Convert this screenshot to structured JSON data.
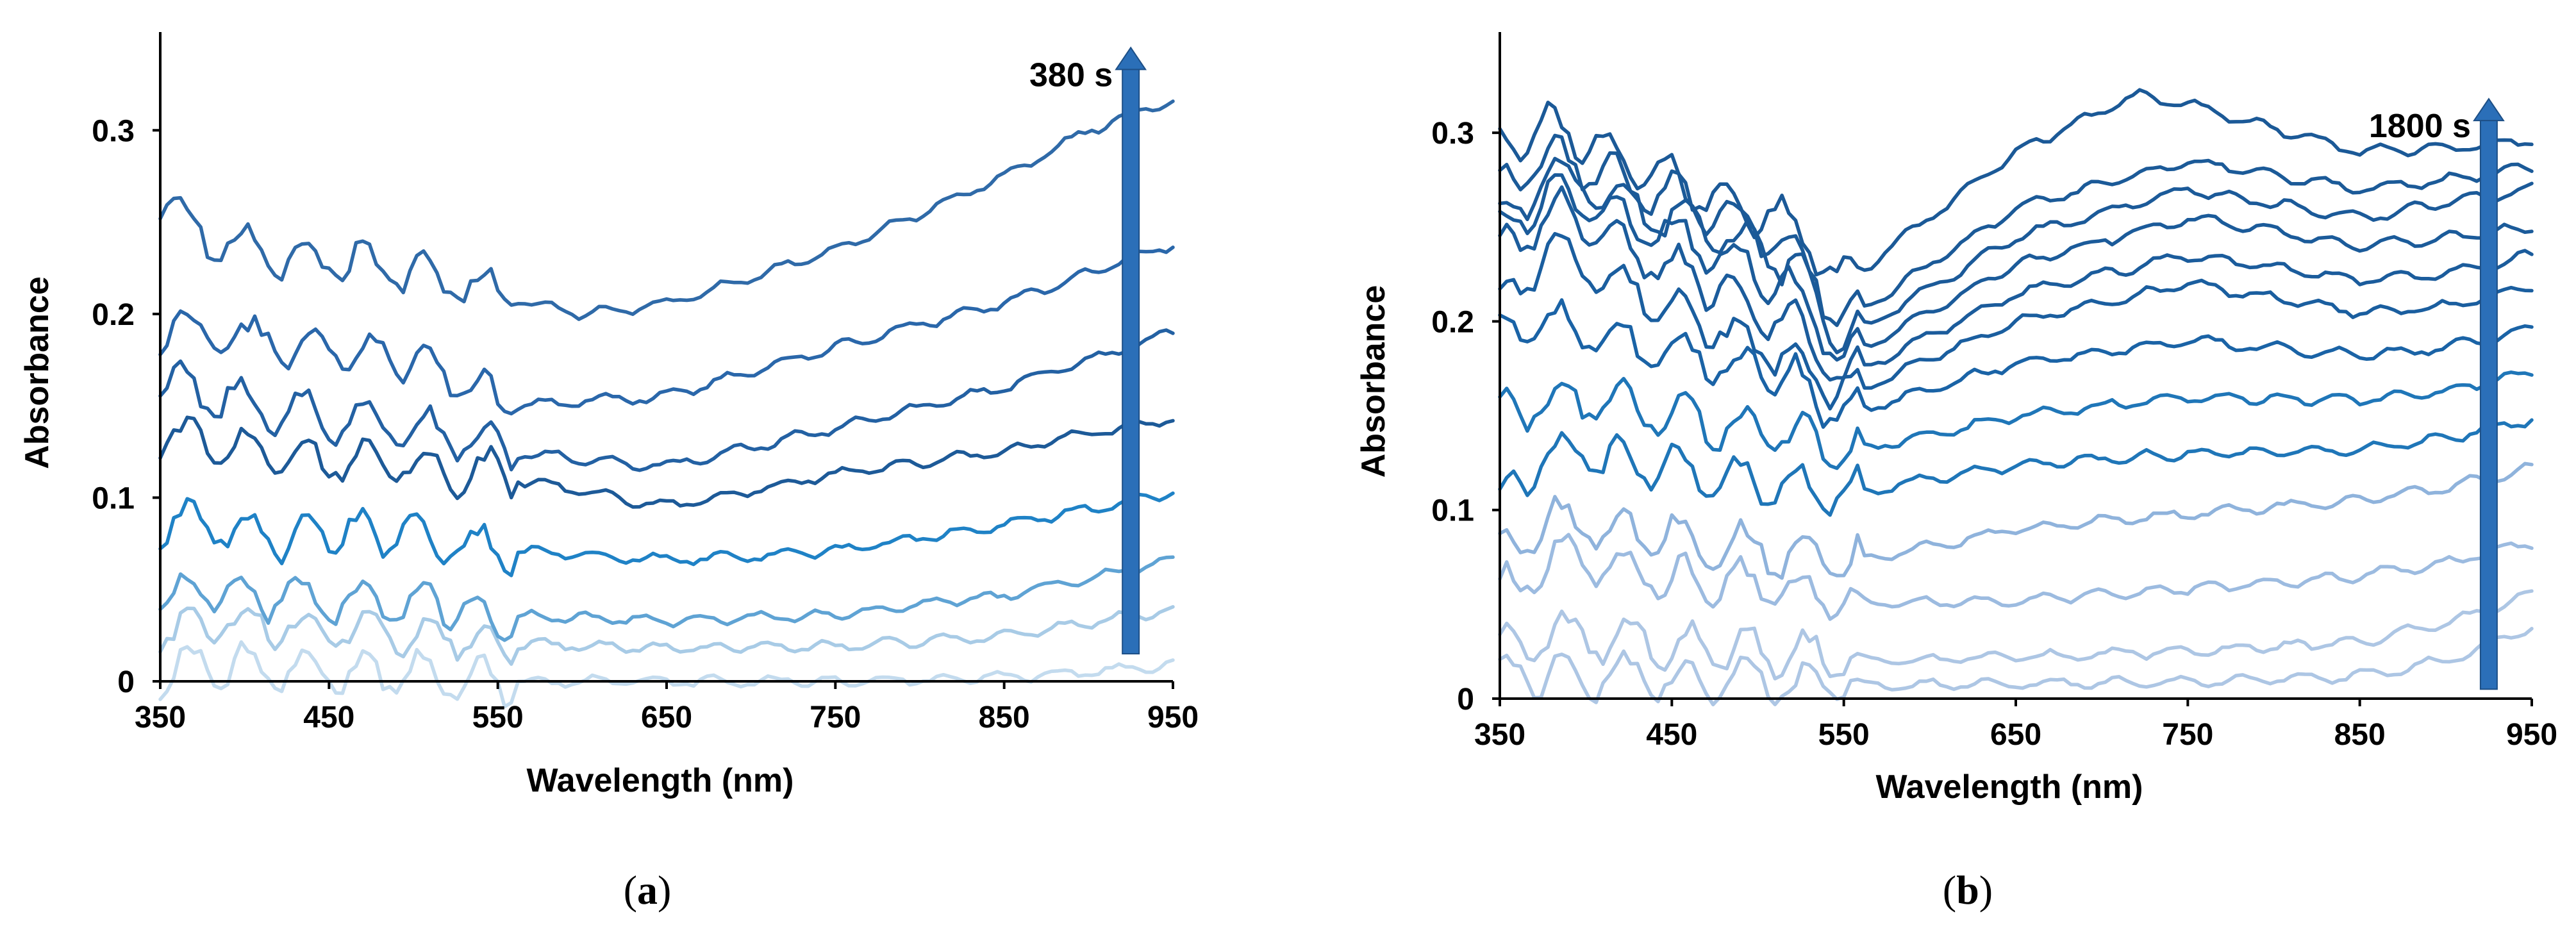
{
  "panels": [
    {
      "label_open": "(",
      "label_letter": "a",
      "label_close": ")"
    },
    {
      "label_open": "(",
      "label_letter": "b",
      "label_close": ")"
    }
  ],
  "chart_data": [
    {
      "type": "line",
      "xlabel": "Wavelength (nm)",
      "ylabel": "Absorbance",
      "xlim": [
        350,
        950
      ],
      "ylim": [
        0,
        0.35
      ],
      "xticks": [
        350,
        450,
        550,
        650,
        750,
        850,
        950
      ],
      "yticks": [
        0,
        0.1,
        0.2,
        0.3
      ],
      "ytick_labels": [
        "0",
        "0.1",
        "0.2",
        "0.3"
      ],
      "grid": false,
      "annotation": {
        "text": "380 s",
        "arrow_x": 925,
        "arrow_y_from": 0.015,
        "arrow_y_to": 0.345,
        "arrow_color": "#2b6fb8"
      },
      "series": [
        {
          "color": "#c3dbee",
          "points": [
            [
              350,
              0.005
            ],
            [
              380,
              0.01
            ],
            [
              420,
              0.006
            ],
            [
              470,
              0.004
            ],
            [
              520,
              0.003
            ],
            [
              550,
              0.0
            ],
            [
              650,
              0.0
            ],
            [
              750,
              0.0
            ],
            [
              850,
              0.002
            ],
            [
              900,
              0.005
            ],
            [
              950,
              0.009
            ]
          ]
        },
        {
          "color": "#a8cbe6",
          "points": [
            [
              350,
              0.028
            ],
            [
              380,
              0.033
            ],
            [
              420,
              0.03
            ],
            [
              470,
              0.026
            ],
            [
              520,
              0.024
            ],
            [
              550,
              0.021
            ],
            [
              650,
              0.018
            ],
            [
              750,
              0.019
            ],
            [
              850,
              0.025
            ],
            [
              900,
              0.032
            ],
            [
              950,
              0.039
            ]
          ]
        },
        {
          "color": "#5fa3d4",
          "points": [
            [
              350,
              0.048
            ],
            [
              380,
              0.05
            ],
            [
              420,
              0.045
            ],
            [
              470,
              0.042
            ],
            [
              520,
              0.04
            ],
            [
              550,
              0.036
            ],
            [
              650,
              0.033
            ],
            [
              750,
              0.036
            ],
            [
              850,
              0.047
            ],
            [
              900,
              0.056
            ],
            [
              950,
              0.066
            ]
          ]
        },
        {
          "color": "#1f82c6",
          "points": [
            [
              350,
              0.087
            ],
            [
              380,
              0.085
            ],
            [
              420,
              0.078
            ],
            [
              470,
              0.082
            ],
            [
              520,
              0.075
            ],
            [
              550,
              0.072
            ],
            [
              650,
              0.066
            ],
            [
              750,
              0.071
            ],
            [
              850,
              0.085
            ],
            [
              900,
              0.094
            ],
            [
              950,
              0.103
            ]
          ]
        },
        {
          "color": "#1d5a98",
          "points": [
            [
              350,
              0.133
            ],
            [
              380,
              0.13
            ],
            [
              420,
              0.125
            ],
            [
              470,
              0.12
            ],
            [
              520,
              0.115
            ],
            [
              550,
              0.112
            ],
            [
              650,
              0.095
            ],
            [
              750,
              0.113
            ],
            [
              850,
              0.125
            ],
            [
              900,
              0.135
            ],
            [
              950,
              0.143
            ]
          ]
        },
        {
          "color": "#2361a3",
          "points": [
            [
              350,
              0.163
            ],
            [
              380,
              0.155
            ],
            [
              420,
              0.148
            ],
            [
              470,
              0.14
            ],
            [
              520,
              0.135
            ],
            [
              550,
              0.125
            ],
            [
              650,
              0.117
            ],
            [
              750,
              0.138
            ],
            [
              850,
              0.16
            ],
            [
              900,
              0.175
            ],
            [
              950,
              0.19
            ]
          ]
        },
        {
          "color": "#2a67aa",
          "points": [
            [
              350,
              0.192
            ],
            [
              380,
              0.19
            ],
            [
              420,
              0.182
            ],
            [
              470,
              0.178
            ],
            [
              520,
              0.17
            ],
            [
              550,
              0.15
            ],
            [
              650,
              0.155
            ],
            [
              750,
              0.182
            ],
            [
              850,
              0.206
            ],
            [
              900,
              0.222
            ],
            [
              950,
              0.238
            ]
          ]
        },
        {
          "color": "#2f6aa8",
          "points": [
            [
              350,
              0.262
            ],
            [
              380,
              0.24
            ],
            [
              420,
              0.232
            ],
            [
              470,
              0.228
            ],
            [
              520,
              0.22
            ],
            [
              550,
              0.21
            ],
            [
              600,
              0.2
            ],
            [
              650,
              0.205
            ],
            [
              750,
              0.235
            ],
            [
              850,
              0.275
            ],
            [
              900,
              0.3
            ],
            [
              950,
              0.317
            ]
          ]
        }
      ]
    },
    {
      "type": "line",
      "xlabel": "Wavelength (nm)",
      "ylabel": "Absorbance",
      "xlim": [
        350,
        950
      ],
      "ylim": [
        0,
        0.35
      ],
      "xticks": [
        350,
        450,
        550,
        650,
        750,
        850,
        950
      ],
      "yticks": [
        0,
        0.1,
        0.2,
        0.3
      ],
      "ytick_labels": [
        "0",
        "0.1",
        "0.2",
        "0.3"
      ],
      "grid": false,
      "annotation": {
        "text": "1800 s",
        "arrow_x": 925,
        "arrow_y_from": 0.005,
        "arrow_y_to": 0.318,
        "arrow_color": "#2b6fb8"
      },
      "series": [
        {
          "color": "#adc6e4",
          "points": [
            [
              350,
              0.01
            ],
            [
              380,
              0.015
            ],
            [
              420,
              0.012
            ],
            [
              470,
              0.01
            ],
            [
              520,
              0.008
            ],
            [
              550,
              0.007
            ],
            [
              650,
              0.008
            ],
            [
              750,
              0.009
            ],
            [
              850,
              0.012
            ],
            [
              900,
              0.02
            ],
            [
              950,
              0.038
            ]
          ]
        },
        {
          "color": "#adc6e4",
          "points": [
            [
              350,
              0.03
            ],
            [
              380,
              0.035
            ],
            [
              420,
              0.03
            ],
            [
              470,
              0.028
            ],
            [
              520,
              0.024
            ],
            [
              550,
              0.02
            ],
            [
              650,
              0.022
            ],
            [
              750,
              0.025
            ],
            [
              850,
              0.03
            ],
            [
              900,
              0.04
            ],
            [
              950,
              0.055
            ]
          ]
        },
        {
          "color": "#9cbbe0",
          "points": [
            [
              350,
              0.055
            ],
            [
              380,
              0.075
            ],
            [
              420,
              0.068
            ],
            [
              470,
              0.062
            ],
            [
              520,
              0.058
            ],
            [
              550,
              0.05
            ],
            [
              650,
              0.052
            ],
            [
              750,
              0.058
            ],
            [
              850,
              0.065
            ],
            [
              900,
              0.072
            ],
            [
              950,
              0.083
            ]
          ]
        },
        {
          "color": "#8fb3dc",
          "points": [
            [
              350,
              0.075
            ],
            [
              380,
              0.095
            ],
            [
              420,
              0.09
            ],
            [
              470,
              0.082
            ],
            [
              520,
              0.077
            ],
            [
              550,
              0.072
            ],
            [
              650,
              0.09
            ],
            [
              750,
              0.098
            ],
            [
              850,
              0.105
            ],
            [
              900,
              0.112
            ],
            [
              950,
              0.122
            ]
          ]
        },
        {
          "color": "#1f76b8",
          "points": [
            [
              350,
              0.105
            ],
            [
              380,
              0.13
            ],
            [
              420,
              0.125
            ],
            [
              470,
              0.12
            ],
            [
              520,
              0.115
            ],
            [
              550,
              0.108
            ],
            [
              650,
              0.124
            ],
            [
              750,
              0.13
            ],
            [
              850,
              0.132
            ],
            [
              900,
              0.138
            ],
            [
              950,
              0.148
            ]
          ]
        },
        {
          "color": "#1f76b8",
          "points": [
            [
              350,
              0.15
            ],
            [
              380,
              0.16
            ],
            [
              420,
              0.155
            ],
            [
              470,
              0.145
            ],
            [
              520,
              0.14
            ],
            [
              550,
              0.13
            ],
            [
              650,
              0.15
            ],
            [
              750,
              0.16
            ],
            [
              850,
              0.158
            ],
            [
              900,
              0.163
            ],
            [
              950,
              0.173
            ]
          ]
        },
        {
          "color": "#1a63a6",
          "points": [
            [
              350,
              0.19
            ],
            [
              380,
              0.2
            ],
            [
              420,
              0.19
            ],
            [
              470,
              0.18
            ],
            [
              520,
              0.17
            ],
            [
              550,
              0.15
            ],
            [
              650,
              0.178
            ],
            [
              750,
              0.19
            ],
            [
              850,
              0.182
            ],
            [
              900,
              0.186
            ],
            [
              950,
              0.196
            ]
          ]
        },
        {
          "color": "#1a5e9f",
          "points": [
            [
              350,
              0.21
            ],
            [
              380,
              0.24
            ],
            [
              420,
              0.22
            ],
            [
              470,
              0.2
            ],
            [
              520,
              0.18
            ],
            [
              550,
              0.16
            ],
            [
              650,
              0.2
            ],
            [
              750,
              0.22
            ],
            [
              850,
              0.205
            ],
            [
              900,
              0.208
            ],
            [
              950,
              0.218
            ]
          ]
        },
        {
          "color": "#1b5c9c",
          "points": [
            [
              350,
              0.235
            ],
            [
              380,
              0.26
            ],
            [
              420,
              0.24
            ],
            [
              470,
              0.22
            ],
            [
              520,
              0.2
            ],
            [
              550,
              0.17
            ],
            [
              650,
              0.215
            ],
            [
              750,
              0.235
            ],
            [
              850,
              0.222
            ],
            [
              900,
              0.225
            ],
            [
              950,
              0.235
            ]
          ]
        },
        {
          "color": "#1b5b9a",
          "points": [
            [
              350,
              0.245
            ],
            [
              380,
              0.27
            ],
            [
              420,
              0.255
            ],
            [
              470,
              0.24
            ],
            [
              520,
              0.215
            ],
            [
              550,
              0.18
            ],
            [
              650,
              0.23
            ],
            [
              750,
              0.255
            ],
            [
              850,
              0.24
            ],
            [
              900,
              0.244
            ],
            [
              950,
              0.25
            ]
          ]
        },
        {
          "color": "#1b5a99",
          "points": [
            [
              350,
              0.255
            ],
            [
              380,
              0.28
            ],
            [
              420,
              0.265
            ],
            [
              470,
              0.25
            ],
            [
              520,
              0.23
            ],
            [
              550,
              0.19
            ],
            [
              650,
              0.245
            ],
            [
              750,
              0.27
            ],
            [
              850,
              0.255
            ],
            [
              900,
              0.263
            ],
            [
              950,
              0.27
            ]
          ]
        },
        {
          "color": "#1b5a98",
          "points": [
            [
              350,
              0.27
            ],
            [
              380,
              0.29
            ],
            [
              420,
              0.275
            ],
            [
              470,
              0.26
            ],
            [
              520,
              0.24
            ],
            [
              550,
              0.2
            ],
            [
              650,
              0.26
            ],
            [
              750,
              0.285
            ],
            [
              850,
              0.27
            ],
            [
              900,
              0.275
            ],
            [
              950,
              0.282
            ]
          ]
        },
        {
          "color": "#1b5997",
          "points": [
            [
              350,
              0.29
            ],
            [
              380,
              0.305
            ],
            [
              420,
              0.285
            ],
            [
              470,
              0.27
            ],
            [
              520,
              0.25
            ],
            [
              550,
              0.22
            ],
            [
              650,
              0.29
            ],
            [
              720,
              0.32
            ],
            [
              750,
              0.315
            ],
            [
              850,
              0.29
            ],
            [
              900,
              0.292
            ],
            [
              950,
              0.296
            ]
          ]
        }
      ]
    }
  ]
}
